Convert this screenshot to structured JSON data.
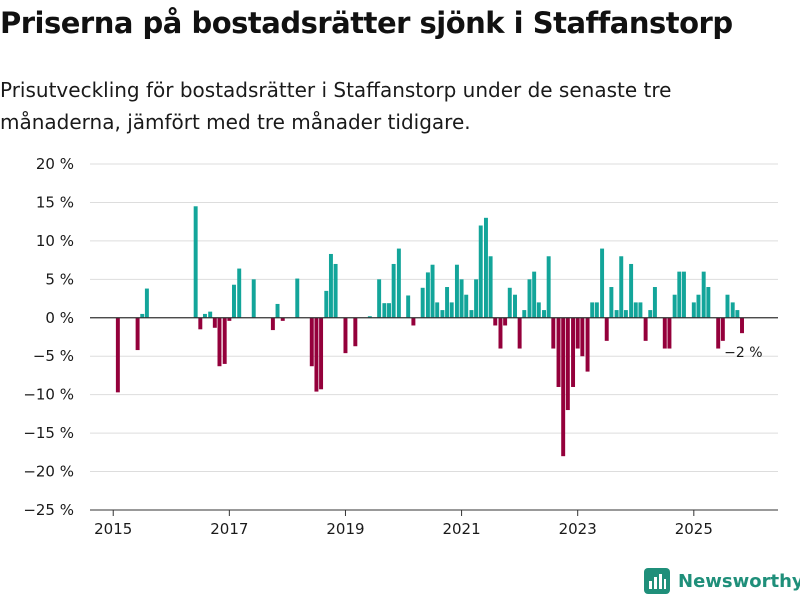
{
  "header": {
    "title": "Priserna på bostadsrätter sjönk i Staffanstorp",
    "subtitle": "Prisutveckling för bostadsrätter i Staffanstorp under de senaste tre månaderna, jämfört med tre månader tidigare."
  },
  "brand": {
    "name": "Newsworthy"
  },
  "colors": {
    "positive": "#13a59a",
    "negative": "#94003b",
    "grid": "#dddddd",
    "axis": "#333333",
    "text": "#1a1a1a",
    "brand": "#1f8f7a"
  },
  "chart_data": {
    "type": "bar",
    "title": "Priserna på bostadsrätter sjönk i Staffanstorp",
    "xlabel": "",
    "ylabel": "",
    "unit": "%",
    "ylim": [
      -25,
      20
    ],
    "xlim": [
      2014.6,
      2026.45
    ],
    "yticks": [
      20,
      15,
      10,
      5,
      0,
      -5,
      -10,
      -15,
      -20,
      -25
    ],
    "ytick_labels": [
      "20 %",
      "15 %",
      "10 %",
      "5 %",
      "0 %",
      "−5 %",
      "−10 %",
      "−15 %",
      "−20 %",
      "−25 %"
    ],
    "xticks": [
      2015,
      2017,
      2019,
      2021,
      2023,
      2025
    ],
    "xtick_labels": [
      "2015",
      "2017",
      "2019",
      "2021",
      "2023",
      "2025"
    ],
    "bar_width_years": 0.068,
    "grid": true,
    "annotation": {
      "text": "−2 %",
      "x": 2025.85,
      "y": -2
    },
    "points": [
      {
        "x": 2015.08,
        "y": -9.7
      },
      {
        "x": 2015.42,
        "y": -4.2
      },
      {
        "x": 2015.5,
        "y": 0.5
      },
      {
        "x": 2015.58,
        "y": 3.8
      },
      {
        "x": 2016.42,
        "y": 14.5
      },
      {
        "x": 2016.5,
        "y": -1.5
      },
      {
        "x": 2016.58,
        "y": 0.5
      },
      {
        "x": 2016.67,
        "y": 0.8
      },
      {
        "x": 2016.75,
        "y": -1.3
      },
      {
        "x": 2016.83,
        "y": -6.3
      },
      {
        "x": 2016.92,
        "y": -6.0
      },
      {
        "x": 2017.0,
        "y": -0.4
      },
      {
        "x": 2017.08,
        "y": 4.3
      },
      {
        "x": 2017.17,
        "y": 6.4
      },
      {
        "x": 2017.42,
        "y": 5.0
      },
      {
        "x": 2017.75,
        "y": -1.6
      },
      {
        "x": 2017.83,
        "y": 1.8
      },
      {
        "x": 2017.92,
        "y": -0.4
      },
      {
        "x": 2018.17,
        "y": 5.1
      },
      {
        "x": 2018.42,
        "y": -6.3
      },
      {
        "x": 2018.5,
        "y": -9.6
      },
      {
        "x": 2018.58,
        "y": -9.3
      },
      {
        "x": 2018.67,
        "y": 3.5
      },
      {
        "x": 2018.75,
        "y": 8.3
      },
      {
        "x": 2018.83,
        "y": 7.0
      },
      {
        "x": 2019.0,
        "y": -4.6
      },
      {
        "x": 2019.17,
        "y": -3.7
      },
      {
        "x": 2019.42,
        "y": 0.2
      },
      {
        "x": 2019.58,
        "y": 5.0
      },
      {
        "x": 2019.67,
        "y": 1.9
      },
      {
        "x": 2019.75,
        "y": 1.9
      },
      {
        "x": 2019.83,
        "y": 7.0
      },
      {
        "x": 2019.92,
        "y": 9.0
      },
      {
        "x": 2020.08,
        "y": 2.9
      },
      {
        "x": 2020.17,
        "y": -1.0
      },
      {
        "x": 2020.33,
        "y": 3.9
      },
      {
        "x": 2020.42,
        "y": 5.9
      },
      {
        "x": 2020.5,
        "y": 6.9
      },
      {
        "x": 2020.58,
        "y": 2.0
      },
      {
        "x": 2020.67,
        "y": 1.0
      },
      {
        "x": 2020.75,
        "y": 4.0
      },
      {
        "x": 2020.83,
        "y": 2.0
      },
      {
        "x": 2020.92,
        "y": 6.9
      },
      {
        "x": 2021.0,
        "y": 5.0
      },
      {
        "x": 2021.08,
        "y": 3.0
      },
      {
        "x": 2021.17,
        "y": 1.0
      },
      {
        "x": 2021.25,
        "y": 5.0
      },
      {
        "x": 2021.33,
        "y": 12.0
      },
      {
        "x": 2021.42,
        "y": 13.0
      },
      {
        "x": 2021.5,
        "y": 8.0
      },
      {
        "x": 2021.58,
        "y": -1.0
      },
      {
        "x": 2021.67,
        "y": -4.0
      },
      {
        "x": 2021.75,
        "y": -1.0
      },
      {
        "x": 2021.83,
        "y": 3.9
      },
      {
        "x": 2021.92,
        "y": 3.0
      },
      {
        "x": 2022.0,
        "y": -4.0
      },
      {
        "x": 2022.08,
        "y": 1.0
      },
      {
        "x": 2022.17,
        "y": 5.0
      },
      {
        "x": 2022.25,
        "y": 6.0
      },
      {
        "x": 2022.33,
        "y": 2.0
      },
      {
        "x": 2022.42,
        "y": 1.0
      },
      {
        "x": 2022.5,
        "y": 8.0
      },
      {
        "x": 2022.58,
        "y": -4.0
      },
      {
        "x": 2022.67,
        "y": -9.0
      },
      {
        "x": 2022.75,
        "y": -18.0
      },
      {
        "x": 2022.83,
        "y": -12.0
      },
      {
        "x": 2022.92,
        "y": -9.0
      },
      {
        "x": 2023.0,
        "y": -4.0
      },
      {
        "x": 2023.08,
        "y": -5.0
      },
      {
        "x": 2023.17,
        "y": -7.0
      },
      {
        "x": 2023.25,
        "y": 2.0
      },
      {
        "x": 2023.33,
        "y": 2.0
      },
      {
        "x": 2023.42,
        "y": 9.0
      },
      {
        "x": 2023.5,
        "y": -3.0
      },
      {
        "x": 2023.58,
        "y": 4.0
      },
      {
        "x": 2023.67,
        "y": 1.0
      },
      {
        "x": 2023.75,
        "y": 8.0
      },
      {
        "x": 2023.83,
        "y": 1.0
      },
      {
        "x": 2023.92,
        "y": 7.0
      },
      {
        "x": 2024.0,
        "y": 2.0
      },
      {
        "x": 2024.08,
        "y": 2.0
      },
      {
        "x": 2024.17,
        "y": -3.0
      },
      {
        "x": 2024.25,
        "y": 1.0
      },
      {
        "x": 2024.33,
        "y": 4.0
      },
      {
        "x": 2024.5,
        "y": -4.0
      },
      {
        "x": 2024.58,
        "y": -4.0
      },
      {
        "x": 2024.67,
        "y": 3.0
      },
      {
        "x": 2024.75,
        "y": 6.0
      },
      {
        "x": 2024.83,
        "y": 6.0
      },
      {
        "x": 2025.0,
        "y": 2.0
      },
      {
        "x": 2025.08,
        "y": 3.0
      },
      {
        "x": 2025.17,
        "y": 6.0
      },
      {
        "x": 2025.25,
        "y": 4.0
      },
      {
        "x": 2025.42,
        "y": -4.0
      },
      {
        "x": 2025.5,
        "y": -3.0
      },
      {
        "x": 2025.58,
        "y": 3.0
      },
      {
        "x": 2025.67,
        "y": 2.0
      },
      {
        "x": 2025.75,
        "y": 1.0
      },
      {
        "x": 2025.83,
        "y": -2.0
      }
    ]
  }
}
